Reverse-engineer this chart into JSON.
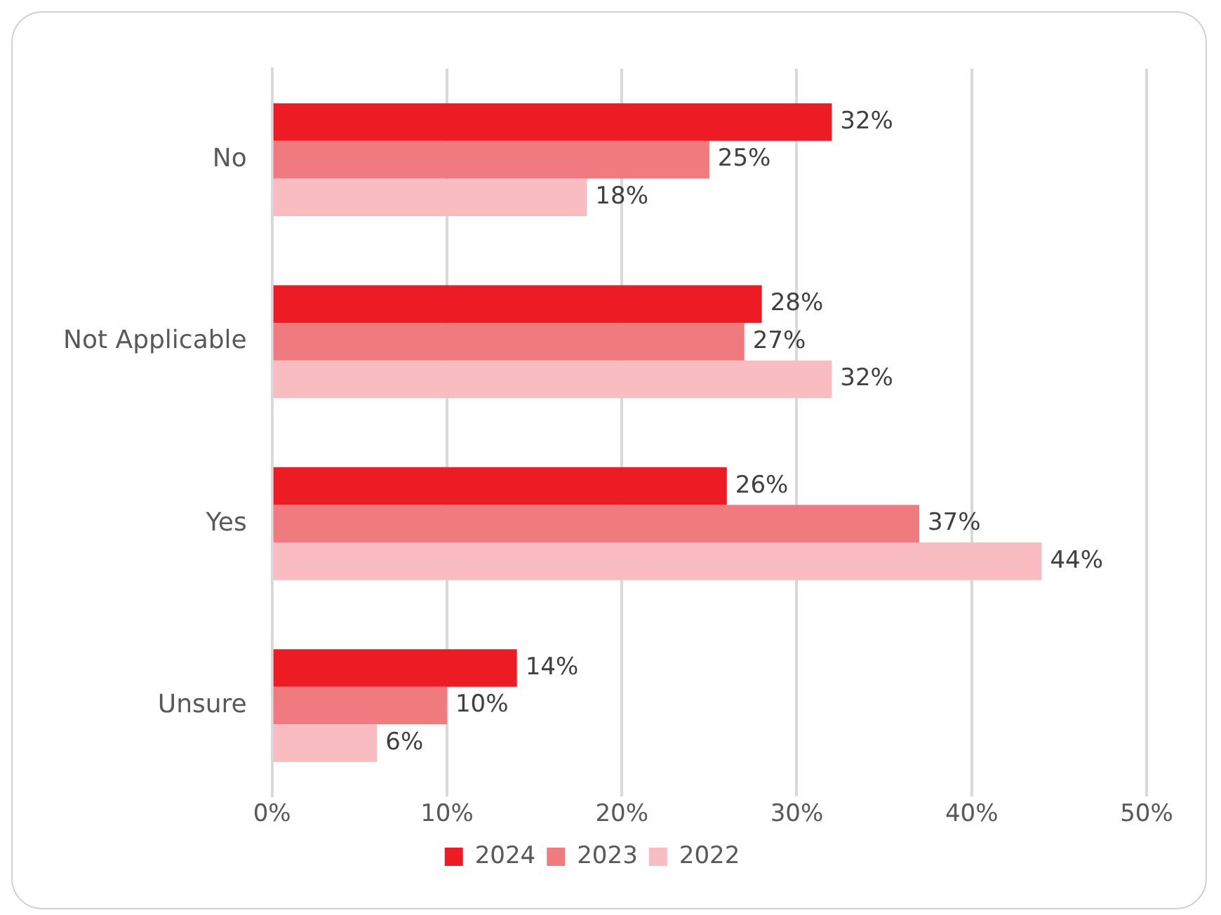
{
  "chart_data": {
    "type": "bar",
    "orientation": "horizontal",
    "categories": [
      "No",
      "Not Applicable",
      "Yes",
      "Unsure"
    ],
    "series": [
      {
        "name": "2024",
        "color": "#ed1c24",
        "values": [
          32,
          28,
          26,
          14
        ],
        "value_labels": [
          "32%",
          "28%",
          "26%",
          "14%"
        ]
      },
      {
        "name": "2023",
        "color": "#f07b7e",
        "values": [
          25,
          27,
          37,
          10
        ],
        "value_labels": [
          "25%",
          "27%",
          "37%",
          "10%"
        ]
      },
      {
        "name": "2022",
        "color": "#f9bcc0",
        "values": [
          18,
          32,
          44,
          6
        ],
        "value_labels": [
          "18%",
          "32%",
          "44%",
          "6%"
        ]
      }
    ],
    "xlim": [
      0,
      50
    ],
    "xticks": [
      {
        "value": 0,
        "label": "0%"
      },
      {
        "value": 10,
        "label": "10%"
      },
      {
        "value": 20,
        "label": "20%"
      },
      {
        "value": 30,
        "label": "30%"
      },
      {
        "value": 40,
        "label": "40%"
      },
      {
        "value": 50,
        "label": "50%"
      }
    ],
    "grid": "x",
    "legend": "bottom"
  }
}
